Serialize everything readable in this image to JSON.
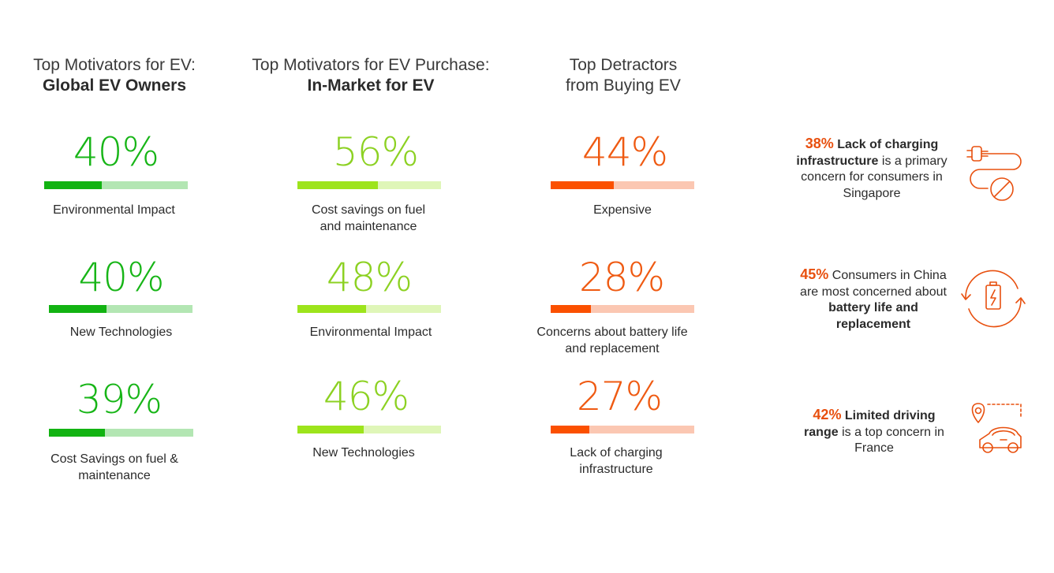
{
  "colors": {
    "col1_fill": "#12b312",
    "col1_track": "#b3e6b3",
    "col2_fill": "#9de41c",
    "col2_track": "#dff6b8",
    "col3_fill": "#fb5000",
    "col3_track": "#fbc7b2",
    "col1_text": "#17b517",
    "col2_text": "#8cd122",
    "col3_text": "#ef5a12",
    "accent": "#e8500f"
  },
  "columns": [
    {
      "title": "Top Motivators for EV:",
      "subtitle": "Global EV Owners"
    },
    {
      "title": "Top Motivators for EV Purchase:",
      "subtitle": "In-Market for EV"
    },
    {
      "title": "Top Detractors",
      "subtitle": "from Buying EV"
    }
  ],
  "chart_data": [
    {
      "type": "bar",
      "title": "Top Motivators for EV: Global EV Owners",
      "categories": [
        "Environmental Impact",
        "New Technologies",
        "Cost Savings on fuel & maintenance"
      ],
      "values": [
        40,
        40,
        39
      ],
      "value_labels": [
        "40%",
        "40%",
        "39%"
      ],
      "ylim": [
        0,
        100
      ]
    },
    {
      "type": "bar",
      "title": "Top Motivators for EV Purchase: In-Market for EV",
      "categories": [
        "Cost savings on fuel and maintenance",
        "Environmental Impact",
        "New Technologies"
      ],
      "values": [
        56,
        48,
        46
      ],
      "value_labels": [
        "56%",
        "48%",
        "46%"
      ],
      "ylim": [
        0,
        100
      ]
    },
    {
      "type": "bar",
      "title": "Top Detractors from Buying EV",
      "categories": [
        "Expensive",
        "Concerns about battery life and replacement",
        "Lack of charging infrastructure"
      ],
      "values": [
        44,
        28,
        27
      ],
      "value_labels": [
        "44%",
        "28%",
        "27%"
      ],
      "ylim": [
        0,
        100
      ]
    }
  ],
  "callouts": [
    {
      "percent": "38%",
      "lead": "Lack of charging infrastructure",
      "rest": "is a primary concern for consumers in Singapore",
      "icon": "plug-no-charging-icon"
    },
    {
      "percent": "45%",
      "lead": "Consumers in China are most concerned about",
      "bold_tail": "battery life and replacement",
      "icon": "battery-cycle-icon"
    },
    {
      "percent": "42%",
      "lead": "Limited driving range",
      "rest": "is a top concern in France",
      "icon": "car-location-route-icon"
    }
  ]
}
